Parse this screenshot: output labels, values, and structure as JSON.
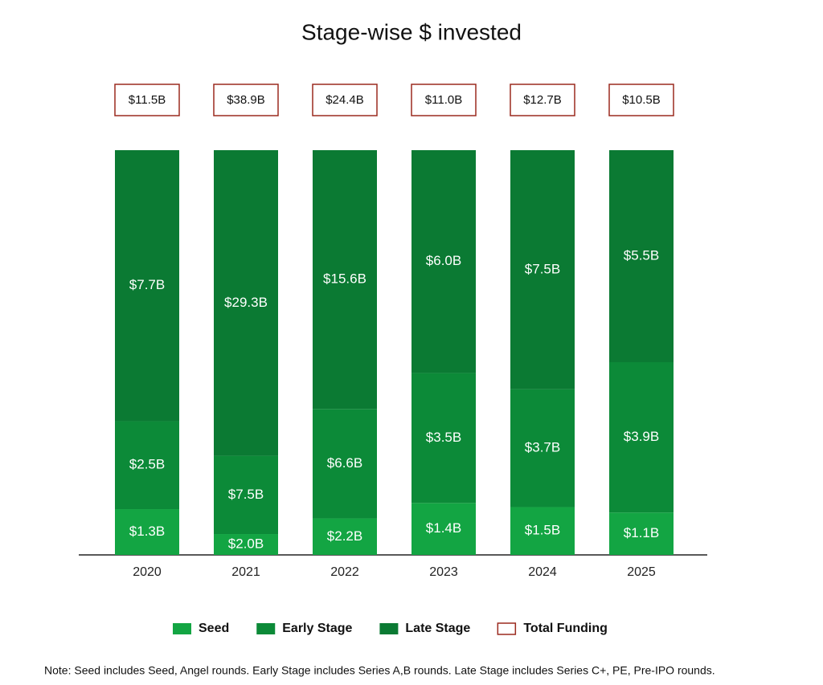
{
  "chart_data": {
    "type": "bar",
    "stacking": "percent",
    "title": "Stage-wise $ invested",
    "categories": [
      "2020",
      "2021",
      "2022",
      "2023",
      "2024",
      "2025"
    ],
    "series": [
      {
        "name": "Seed",
        "color": "#13a543",
        "values": [
          1.3,
          2.0,
          2.2,
          1.4,
          1.5,
          1.1
        ],
        "value_labels": [
          "$1.3B",
          "$2.0B",
          "$2.2B",
          "$1.4B",
          "$1.5B",
          "$1.1B"
        ]
      },
      {
        "name": "Early Stage",
        "color": "#0c8a38",
        "values": [
          2.5,
          7.5,
          6.6,
          3.5,
          3.7,
          3.9
        ],
        "value_labels": [
          "$2.5B",
          "$7.5B",
          "$6.6B",
          "$3.5B",
          "$3.7B",
          "$3.9B"
        ]
      },
      {
        "name": "Late Stage",
        "color": "#0b7a33",
        "values": [
          7.7,
          29.3,
          15.6,
          6.0,
          7.5,
          5.5
        ],
        "value_labels": [
          "$7.7B",
          "$29.3B",
          "$15.6B",
          "$6.0B",
          "$7.5B",
          "$5.5B"
        ]
      }
    ],
    "totals": {
      "name": "Total Funding",
      "color": "#9b2a1f",
      "values": [
        11.5,
        38.9,
        24.4,
        11.0,
        12.7,
        10.5
      ],
      "value_labels": [
        "$11.5B",
        "$38.9B",
        "$24.4B",
        "$11.0B",
        "$12.7B",
        "$10.5B"
      ]
    },
    "note": "Note: Seed includes Seed, Angel rounds. Early Stage includes Series A,B rounds. Late Stage includes Series C+, PE, Pre-IPO rounds."
  }
}
